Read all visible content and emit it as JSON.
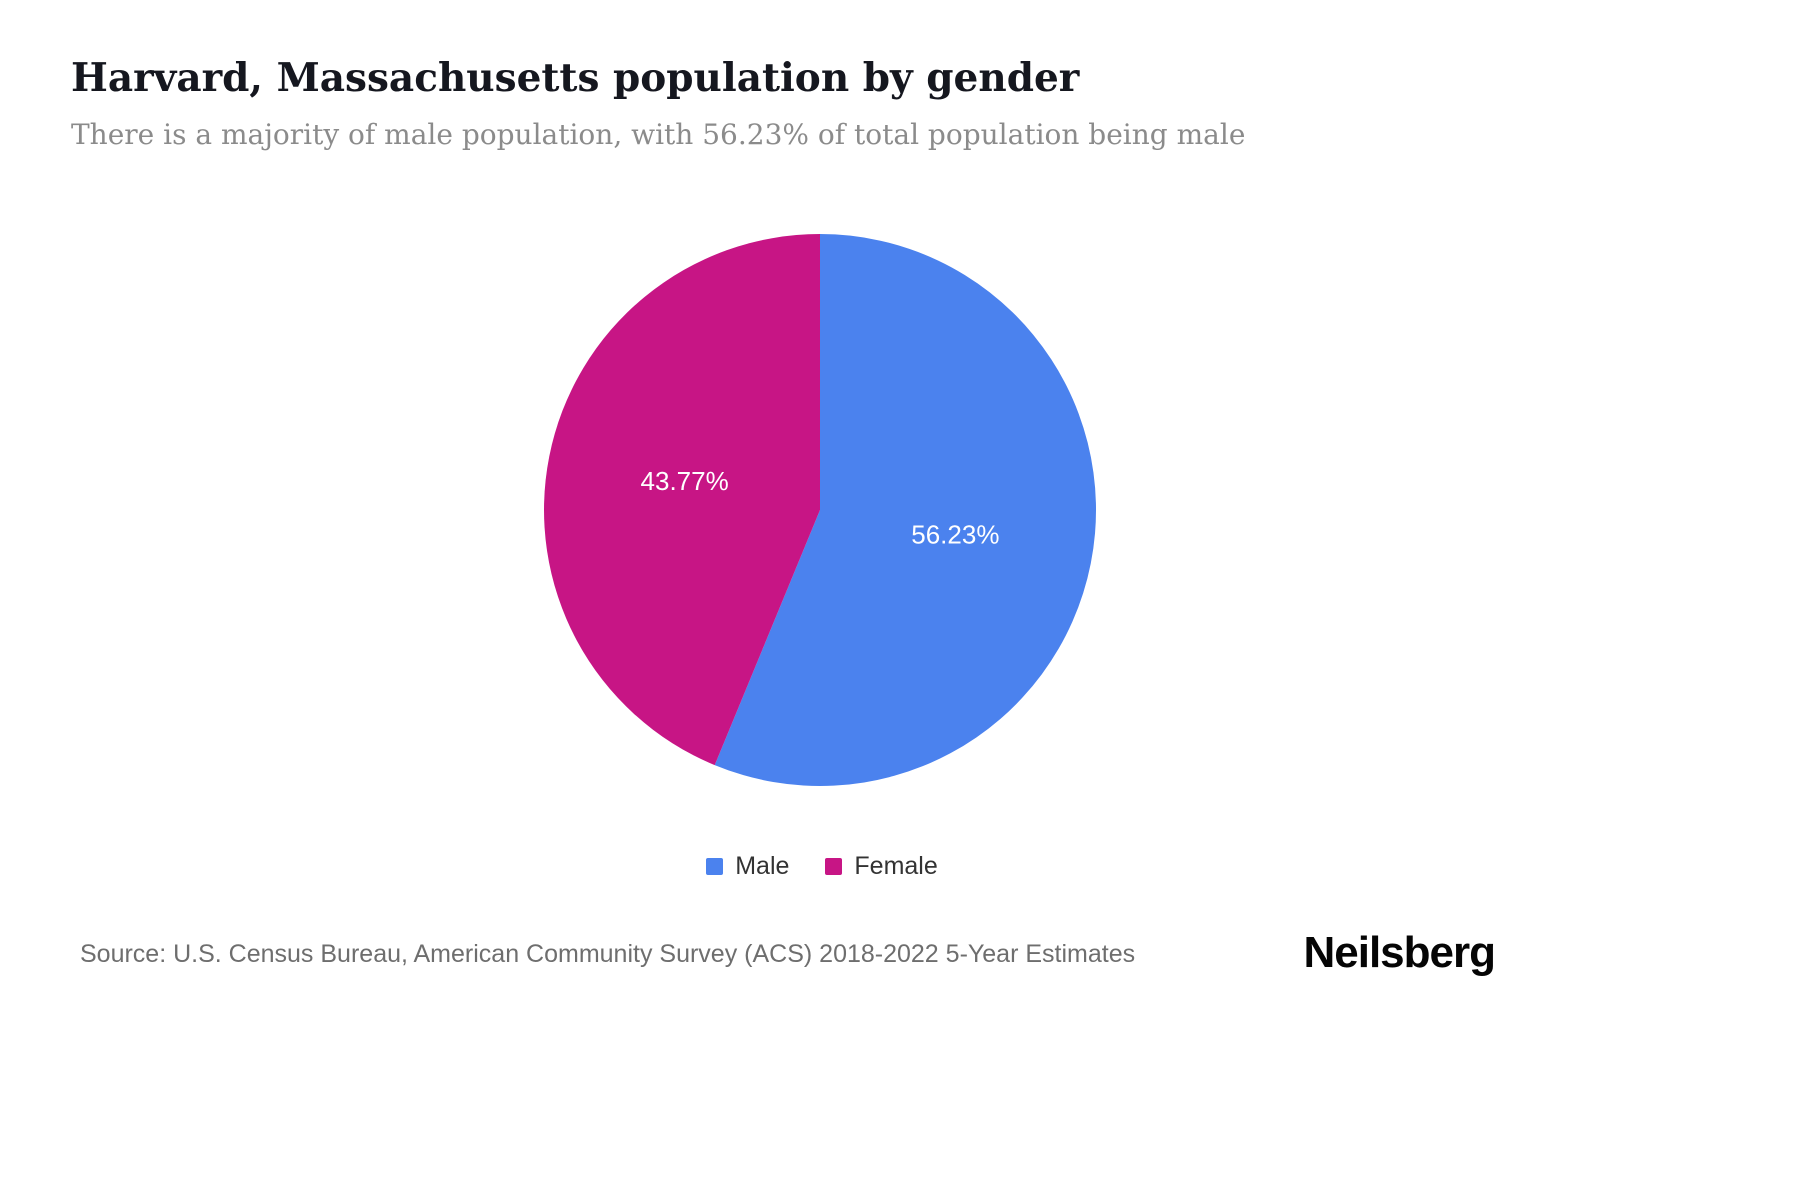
{
  "chart": {
    "title": "Harvard, Massachusetts population by gender",
    "subtitle": "There is a majority of male population, with 56.23% of total population being male",
    "source": "Source: U.S. Census Bureau, American Community Survey (ACS) 2018-2022 5-Year Estimates",
    "brand": "Neilsberg"
  },
  "chart_data": {
    "type": "pie",
    "title": "Harvard, Massachusetts population by gender",
    "slices": [
      {
        "label": "Male",
        "value": 56.23,
        "display": "56.23%",
        "color": "#4b82ee"
      },
      {
        "label": "Female",
        "value": 43.77,
        "display": "43.77%",
        "color": "#c71585"
      }
    ],
    "start_angle_deg": 0,
    "direction": "clockwise",
    "label_color": "#ffffff",
    "label_radius_ratio": 0.5,
    "legend_position": "bottom",
    "legend_labels": [
      "Male",
      "Female"
    ]
  }
}
